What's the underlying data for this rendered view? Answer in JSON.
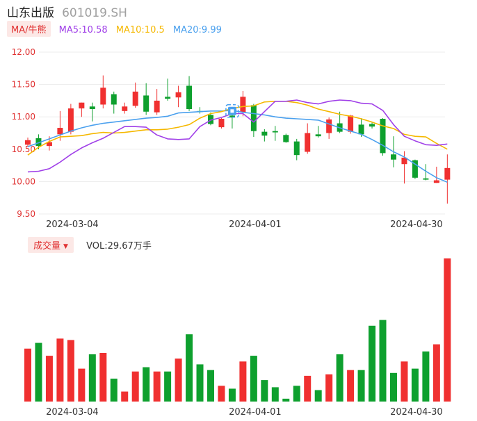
{
  "header": {
    "name": "山东出版",
    "code": "601019.SH"
  },
  "legend": {
    "tag_label": "MA/牛熊",
    "ma5": "MA5:10.58",
    "ma10": "MA10:10.5",
    "ma20": "MA20:9.99"
  },
  "volume": {
    "tag_label": "成交量",
    "value_text": "VOL:29.67万手"
  },
  "colors": {
    "up": "#f03030",
    "down": "#0ea02e",
    "ma5": "#a040e8",
    "ma10": "#f5b800",
    "ma20": "#4aa0ee",
    "bull_bear": "#4aa0ee"
  },
  "icons": {
    "bull_bear_marker": "bull-bear-icon",
    "caret": "caret-down-icon"
  },
  "chart_data": [
    {
      "type": "candlestick",
      "y_ticks": [
        "12.00",
        "11.50",
        "11.00",
        "10.50",
        "10.00",
        "9.50"
      ],
      "ylim": [
        9.5,
        12.0
      ],
      "x_tick_labels": [
        {
          "index": 4,
          "label": "2024-03-04"
        },
        {
          "index": 21,
          "label": "2024-04-01"
        },
        {
          "index": 36,
          "label": "2024-04-30"
        }
      ],
      "candles": [
        {
          "o": 10.57,
          "c": 10.64,
          "h": 10.68,
          "l": 10.55
        },
        {
          "o": 10.67,
          "c": 10.55,
          "h": 10.73,
          "l": 10.5
        },
        {
          "o": 10.55,
          "c": 10.61,
          "h": 10.7,
          "l": 10.48
        },
        {
          "o": 10.73,
          "c": 10.83,
          "h": 11.09,
          "l": 10.63
        },
        {
          "o": 10.77,
          "c": 11.13,
          "h": 11.2,
          "l": 10.73
        },
        {
          "o": 11.13,
          "c": 11.22,
          "h": 11.22,
          "l": 11.0
        },
        {
          "o": 11.16,
          "c": 11.12,
          "h": 11.22,
          "l": 10.93
        },
        {
          "o": 11.19,
          "c": 11.45,
          "h": 11.64,
          "l": 11.13
        },
        {
          "o": 11.35,
          "c": 11.19,
          "h": 11.39,
          "l": 11.05
        },
        {
          "o": 11.09,
          "c": 11.16,
          "h": 11.22,
          "l": 11.05
        },
        {
          "o": 11.17,
          "c": 11.39,
          "h": 11.53,
          "l": 11.14
        },
        {
          "o": 11.33,
          "c": 11.08,
          "h": 11.52,
          "l": 11.03
        },
        {
          "o": 11.07,
          "c": 11.25,
          "h": 11.43,
          "l": 11.03
        },
        {
          "o": 11.31,
          "c": 11.28,
          "h": 11.59,
          "l": 11.25
        },
        {
          "o": 11.3,
          "c": 11.38,
          "h": 11.48,
          "l": 11.15
        },
        {
          "o": 11.48,
          "c": 11.12,
          "h": 11.63,
          "l": 11.09
        },
        {
          "o": 11.09,
          "c": 11.08,
          "h": 11.15,
          "l": 11.05
        },
        {
          "o": 11.03,
          "c": 10.89,
          "h": 11.07,
          "l": 10.87
        },
        {
          "o": 10.84,
          "c": 10.97,
          "h": 10.98,
          "l": 10.82
        },
        {
          "o": 11.02,
          "c": 10.99,
          "h": 11.1,
          "l": 10.82
        },
        {
          "o": 11.07,
          "c": 11.31,
          "h": 11.4,
          "l": 11.01
        },
        {
          "o": 11.18,
          "c": 10.78,
          "h": 11.2,
          "l": 10.69
        },
        {
          "o": 10.77,
          "c": 10.71,
          "h": 10.81,
          "l": 10.62
        },
        {
          "o": 10.78,
          "c": 10.76,
          "h": 10.86,
          "l": 10.63
        },
        {
          "o": 10.72,
          "c": 10.61,
          "h": 10.74,
          "l": 10.6
        },
        {
          "o": 10.62,
          "c": 10.41,
          "h": 10.66,
          "l": 10.33
        },
        {
          "o": 10.46,
          "c": 10.75,
          "h": 10.9,
          "l": 10.43
        },
        {
          "o": 10.73,
          "c": 10.7,
          "h": 10.86,
          "l": 10.68
        },
        {
          "o": 10.75,
          "c": 10.96,
          "h": 10.99,
          "l": 10.66
        },
        {
          "o": 10.9,
          "c": 10.77,
          "h": 11.08,
          "l": 10.75
        },
        {
          "o": 10.77,
          "c": 11.02,
          "h": 11.03,
          "l": 10.74
        },
        {
          "o": 10.88,
          "c": 10.73,
          "h": 10.98,
          "l": 10.69
        },
        {
          "o": 10.89,
          "c": 10.85,
          "h": 10.91,
          "l": 10.82
        },
        {
          "o": 10.97,
          "c": 10.44,
          "h": 10.98,
          "l": 10.4
        },
        {
          "o": 10.42,
          "c": 10.34,
          "h": 10.7,
          "l": 10.22
        },
        {
          "o": 10.27,
          "c": 10.37,
          "h": 10.47,
          "l": 9.97
        },
        {
          "o": 10.33,
          "c": 10.06,
          "h": 10.34,
          "l": 10.04
        },
        {
          "o": 10.05,
          "c": 10.03,
          "h": 10.27,
          "l": 10.02
        },
        {
          "o": 9.98,
          "c": 10.02,
          "h": 10.23,
          "l": 9.98
        },
        {
          "o": 10.03,
          "c": 10.21,
          "h": 10.42,
          "l": 9.66
        }
      ],
      "ma5": [
        10.15,
        10.16,
        10.2,
        10.3,
        10.42,
        10.52,
        10.6,
        10.67,
        10.76,
        10.85,
        10.85,
        10.84,
        10.72,
        10.66,
        10.65,
        10.66,
        10.85,
        10.95,
        10.99,
        11.05,
        11.05,
        10.92,
        11.08,
        11.24,
        11.24,
        11.26,
        11.22,
        11.2,
        11.24,
        11.26,
        11.25,
        11.21,
        11.2,
        11.1,
        10.88,
        10.7,
        10.63,
        10.57,
        10.56,
        10.58
      ],
      "ma10": [
        10.41,
        10.53,
        10.62,
        10.69,
        10.7,
        10.71,
        10.74,
        10.76,
        10.75,
        10.76,
        10.78,
        10.8,
        10.8,
        10.81,
        10.84,
        10.88,
        10.98,
        11.05,
        11.08,
        11.13,
        11.16,
        11.17,
        11.23,
        11.24,
        11.24,
        11.22,
        11.18,
        11.12,
        11.08,
        11.04,
        11.01,
        10.97,
        10.92,
        10.86,
        10.82,
        10.73,
        10.7,
        10.69,
        10.59,
        10.5
      ],
      "ma20": [
        10.54,
        10.6,
        10.66,
        10.72,
        10.78,
        10.83,
        10.87,
        10.9,
        10.92,
        10.94,
        10.96,
        10.98,
        10.99,
        11.01,
        11.06,
        11.07,
        11.08,
        11.09,
        11.09,
        11.1,
        11.07,
        11.05,
        11.03,
        11.0,
        10.98,
        10.97,
        10.96,
        10.95,
        10.89,
        10.83,
        10.78,
        10.73,
        10.65,
        10.56,
        10.46,
        10.38,
        10.27,
        10.16,
        10.06,
        9.99
      ]
    },
    {
      "type": "bar",
      "title": "成交量",
      "x_tick_labels": [
        {
          "index": 4,
          "label": "2024-03-04"
        },
        {
          "index": 21,
          "label": "2024-04-01"
        },
        {
          "index": 36,
          "label": "2024-04-30"
        }
      ],
      "volumes": [
        0.37,
        0.41,
        0.32,
        0.44,
        0.43,
        0.23,
        0.33,
        0.34,
        0.16,
        0.07,
        0.21,
        0.24,
        0.21,
        0.21,
        0.3,
        0.47,
        0.26,
        0.22,
        0.11,
        0.09,
        0.28,
        0.32,
        0.15,
        0.1,
        0.02,
        0.11,
        0.18,
        0.08,
        0.19,
        0.33,
        0.22,
        0.22,
        0.53,
        0.57,
        0.2,
        0.28,
        0.23,
        0.35,
        0.4,
        1.0
      ],
      "ylim": [
        0,
        1
      ]
    }
  ]
}
